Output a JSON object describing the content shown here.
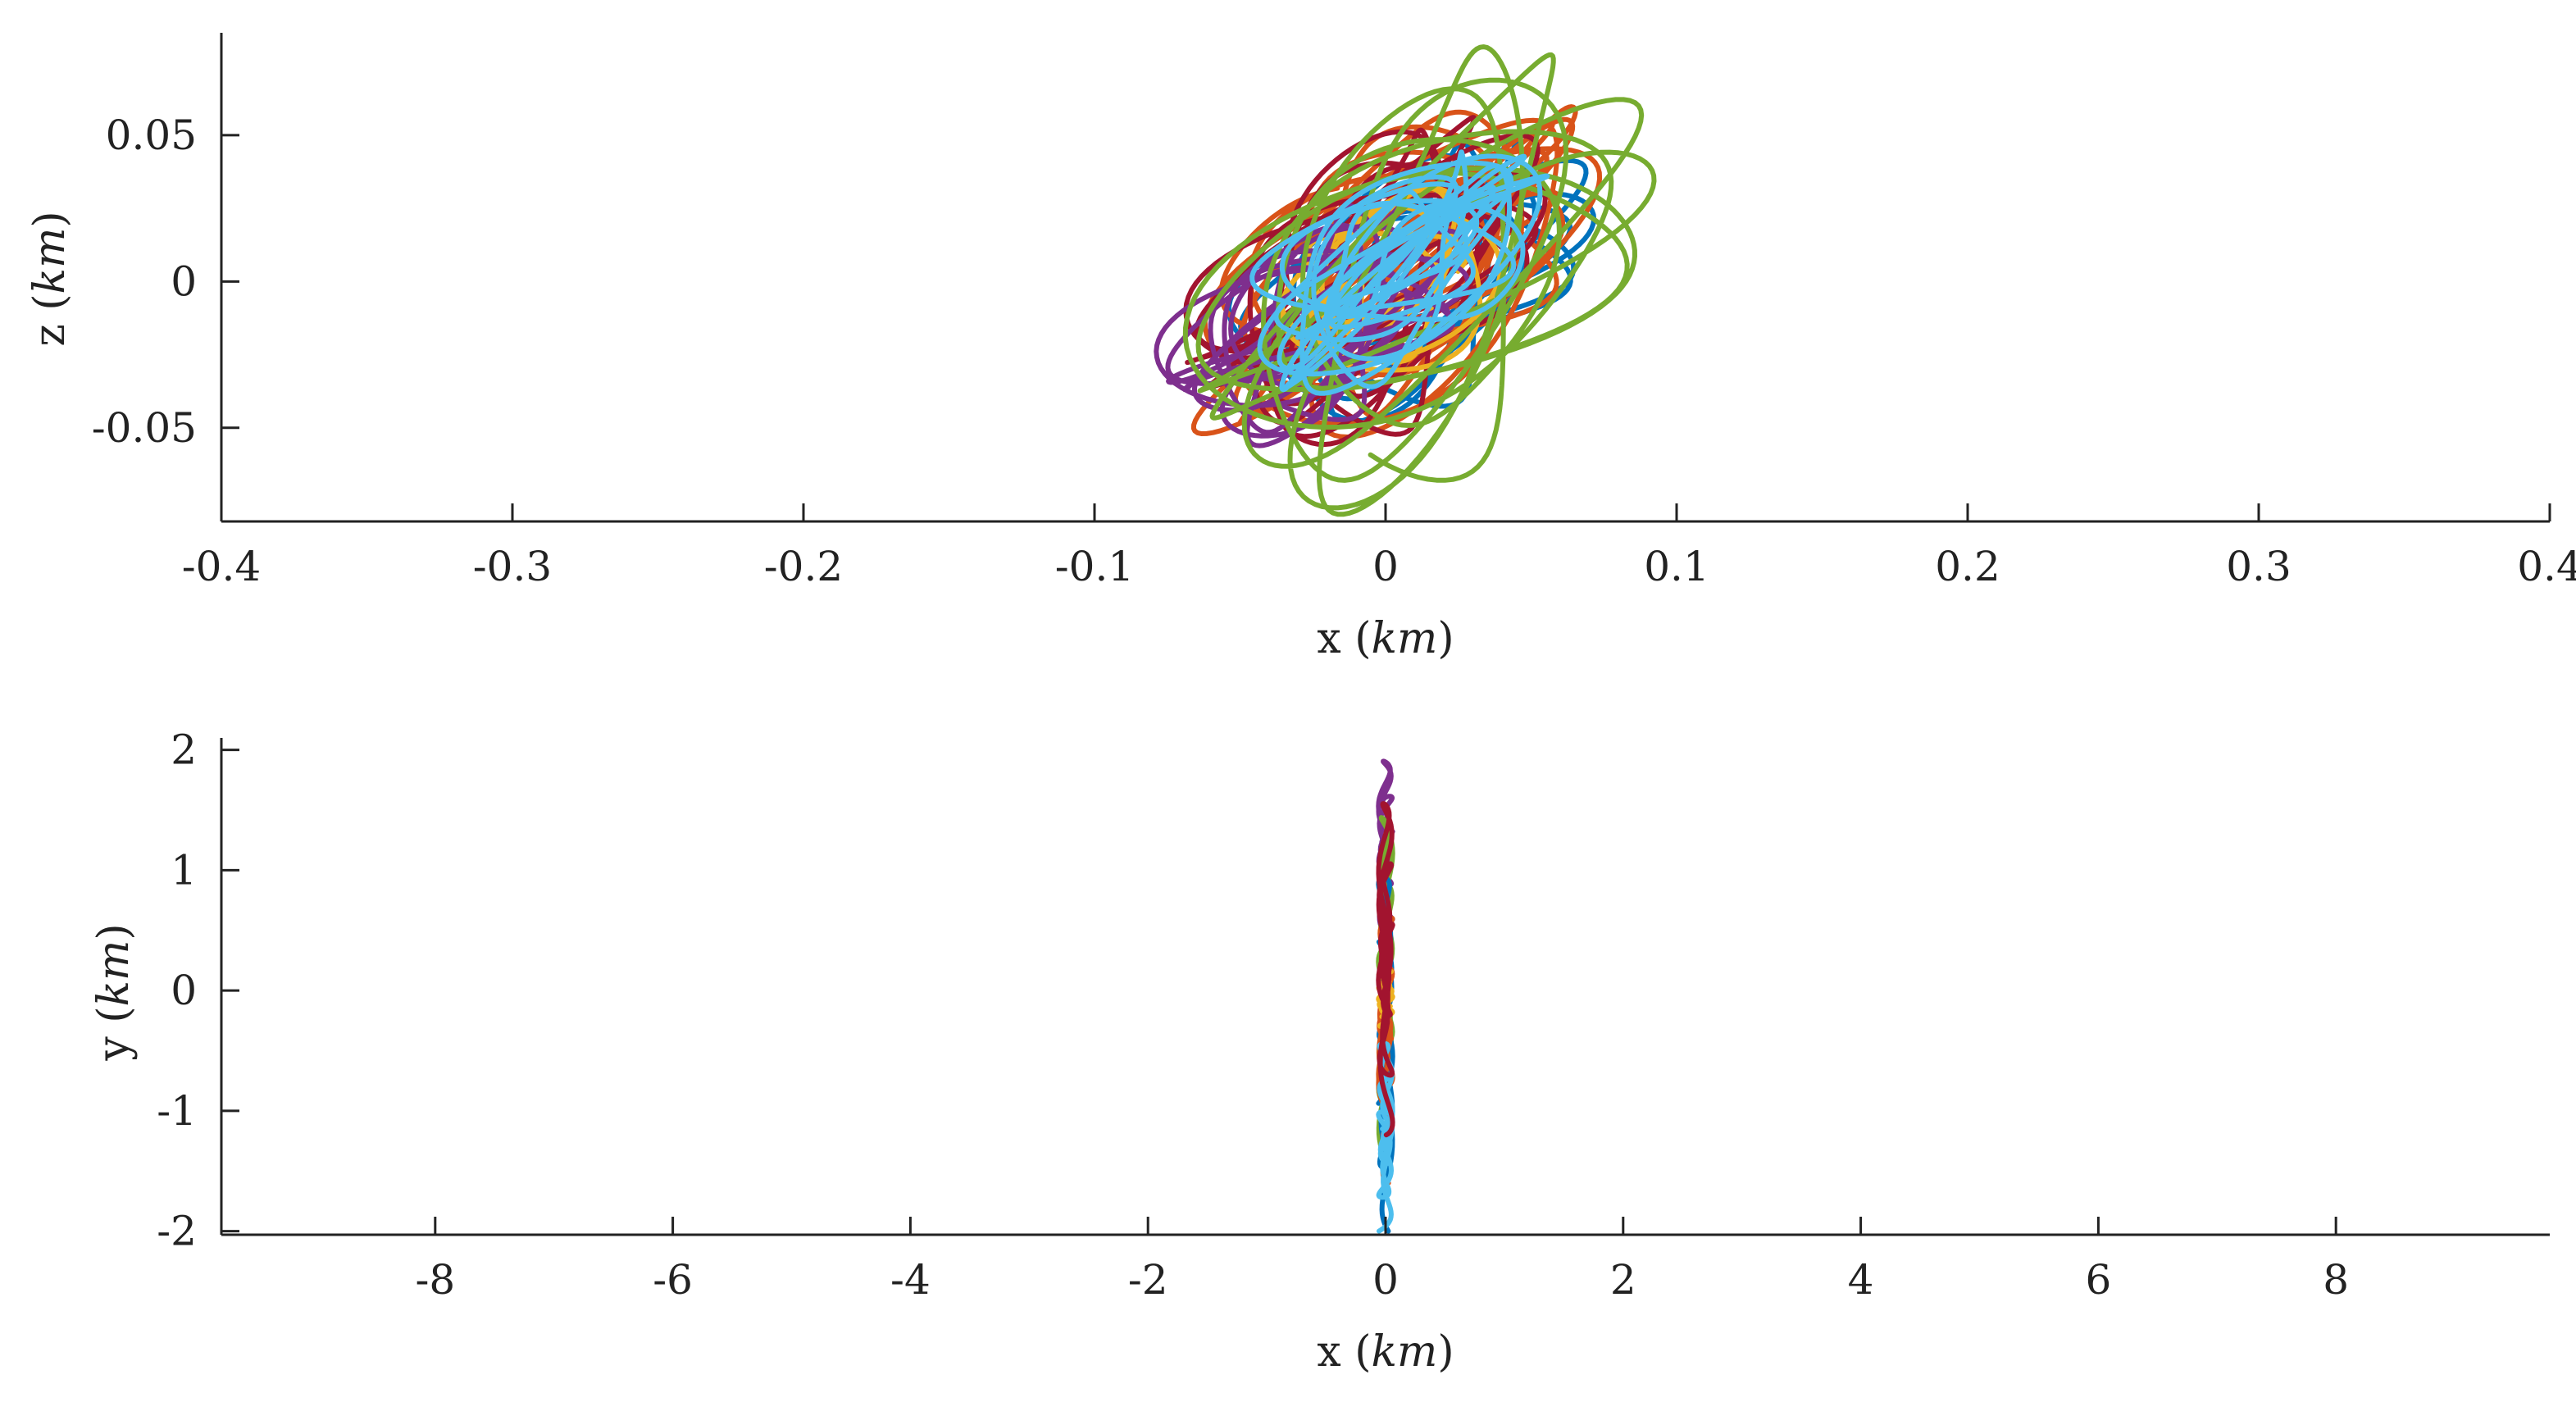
{
  "colors": {
    "axis": "#222222",
    "blue": "#0072BD",
    "orange": "#D95319",
    "yellow": "#EDB120",
    "purple": "#7E2F8E",
    "green": "#77AC30",
    "lightblue": "#4DBEEE",
    "red": "#A2142F"
  },
  "chart_data": [
    {
      "type": "line",
      "title": "",
      "xlabel": {
        "prefix": "x",
        "unit": "km"
      },
      "ylabel": {
        "prefix": "z",
        "unit": "km"
      },
      "xlim": [
        -0.4,
        0.4
      ],
      "ylim": [
        -0.082,
        0.085
      ],
      "grid": false,
      "legend": "none",
      "xticks": [
        -0.4,
        -0.3,
        -0.2,
        -0.1,
        0,
        0.1,
        0.2,
        0.3,
        0.4
      ],
      "xtick_labels": [
        "-0.4",
        "-0.3",
        "-0.2",
        "-0.1",
        "0",
        "0.1",
        "0.2",
        "0.3",
        "0.4"
      ],
      "yticks": [
        -0.05,
        0,
        0.05
      ],
      "ytick_labels": [
        "-0.05",
        "0",
        "0.05"
      ],
      "series": [
        {
          "color": "blue",
          "center": [
            0.01,
            0.0
          ],
          "radius": [
            0.06,
            0.048
          ],
          "loops": 10
        },
        {
          "color": "orange",
          "center": [
            0.005,
            0.005
          ],
          "radius": [
            0.065,
            0.055
          ],
          "loops": 16
        },
        {
          "color": "red",
          "center": [
            -0.005,
            0.0
          ],
          "radius": [
            0.06,
            0.055
          ],
          "loops": 12
        },
        {
          "color": "yellow",
          "center": [
            0.0,
            0.0
          ],
          "radius": [
            0.035,
            0.03
          ],
          "loops": 6
        },
        {
          "color": "purple",
          "center": [
            -0.025,
            -0.015
          ],
          "radius": [
            0.05,
            0.04
          ],
          "loops": 10
        },
        {
          "color": "green",
          "center": [
            0.012,
            0.0
          ],
          "radius": [
            0.078,
            0.08
          ],
          "loops": 10
        },
        {
          "color": "lightblue",
          "center": [
            0.005,
            0.005
          ],
          "radius": [
            0.045,
            0.04
          ],
          "loops": 14
        }
      ]
    },
    {
      "type": "line",
      "title": "",
      "xlabel": {
        "prefix": "x",
        "unit": "km"
      },
      "ylabel": {
        "prefix": "y",
        "unit": "km"
      },
      "xlim": [
        -9.8,
        9.8
      ],
      "ylim": [
        -2.03,
        2.1
      ],
      "grid": false,
      "legend": "none",
      "xticks": [
        -8,
        -6,
        -4,
        -2,
        0,
        2,
        4,
        6,
        8
      ],
      "xtick_labels": [
        "-8",
        "-6",
        "-4",
        "-2",
        "0",
        "2",
        "4",
        "6",
        "8"
      ],
      "yticks": [
        -2,
        -1,
        0,
        1,
        2
      ],
      "ytick_labels": [
        "-2",
        "-1",
        "0",
        "1",
        "2"
      ],
      "series": [
        {
          "color": "purple",
          "y_range": [
            0.3,
            2.05
          ]
        },
        {
          "color": "green",
          "y_range": [
            -1.5,
            1.7
          ]
        },
        {
          "color": "blue",
          "y_range": [
            -2.0,
            1.2
          ]
        },
        {
          "color": "orange",
          "y_range": [
            -1.6,
            0.8
          ]
        },
        {
          "color": "yellow",
          "y_range": [
            -0.3,
            0.2
          ]
        },
        {
          "color": "lightblue",
          "y_range": [
            -2.0,
            -0.3
          ]
        },
        {
          "color": "red",
          "y_range": [
            -1.2,
            1.8
          ]
        }
      ]
    }
  ]
}
